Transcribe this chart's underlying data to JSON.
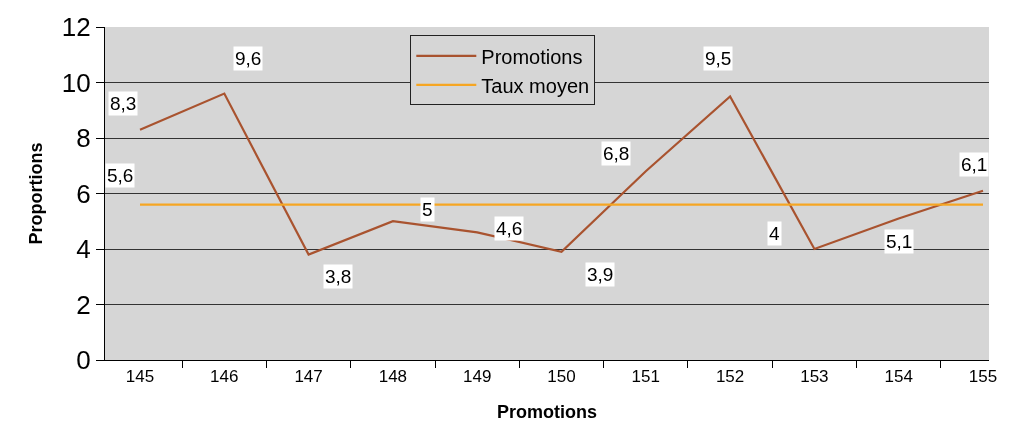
{
  "chart_data": {
    "type": "line",
    "xlabel": "Promotions",
    "ylabel": "Proportions",
    "categories": [
      "145",
      "146",
      "147",
      "148",
      "149",
      "150",
      "151",
      "152",
      "153",
      "154",
      "155"
    ],
    "ylim": [
      0,
      12
    ],
    "yticks": [
      0,
      2,
      4,
      6,
      8,
      10,
      12
    ],
    "grid": "y",
    "legend": "top",
    "series": [
      {
        "name": "Promotions",
        "color": "#a9532f",
        "values": [
          8.3,
          9.6,
          3.8,
          5,
          4.6,
          3.9,
          6.8,
          9.5,
          4,
          5.1,
          6.1
        ],
        "value_labels": [
          "8,3",
          "9,6",
          "3,8",
          "5",
          "4,6",
          "3,9",
          "6,8",
          "9,5",
          "4",
          "5,1",
          "6,1"
        ]
      },
      {
        "name": "Taux moyen",
        "color": "#f6a623",
        "values": [
          5.6,
          5.6,
          5.6,
          5.6,
          5.6,
          5.6,
          5.6,
          5.6,
          5.6,
          5.6,
          5.6
        ],
        "value_labels": [
          "5,6",
          null,
          null,
          null,
          null,
          null,
          null,
          null,
          null,
          null,
          null
        ]
      }
    ]
  }
}
